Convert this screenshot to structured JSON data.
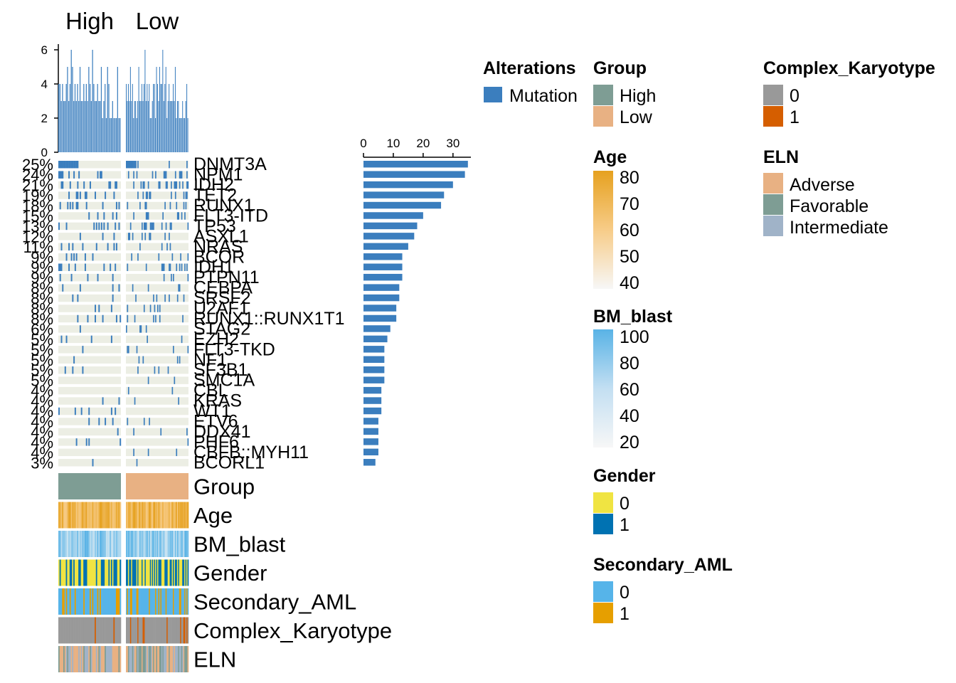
{
  "chart_data": {
    "type": "oncoprint",
    "groups": [
      "High",
      "Low"
    ],
    "top_barplot": {
      "ylim": [
        0,
        6
      ],
      "ticks": [
        0,
        2,
        4,
        6
      ],
      "high_values": [
        4,
        4,
        3,
        4,
        3,
        3,
        4,
        5,
        3,
        4,
        6,
        5,
        3,
        4,
        3,
        4,
        3,
        5,
        3,
        3,
        4,
        3,
        4,
        3,
        5,
        4,
        3,
        6,
        4,
        3,
        3,
        4,
        3,
        3,
        5,
        2,
        3,
        4,
        2,
        5,
        4,
        2,
        2,
        3,
        2,
        2,
        2,
        5,
        2,
        2
      ],
      "low_values": [
        4,
        3,
        4,
        3,
        5,
        3,
        4,
        2,
        3,
        3,
        2,
        3,
        5,
        3,
        3,
        4,
        3,
        4,
        6,
        3,
        4,
        3,
        4,
        2,
        2,
        3,
        4,
        4,
        2,
        5,
        4,
        3,
        5,
        4,
        4,
        6,
        3,
        4,
        5,
        2,
        3,
        4,
        3,
        3,
        3,
        4,
        3,
        5,
        2,
        3,
        3,
        2,
        2,
        2,
        3,
        2,
        2,
        3,
        4,
        2
      ]
    },
    "genes": [
      "DNMT3A",
      "NPM1",
      "IDH2",
      "TET2",
      "RUNX1",
      "FLT3-ITD",
      "TP53",
      "ASXL1",
      "NRAS",
      "BCOR",
      "IDH1",
      "PTPN11",
      "CEBPA",
      "SRSF2",
      "U2AF1",
      "RUNX1::RUNX1T1",
      "STAG2",
      "EZH2",
      "FLT3-TKD",
      "NF1",
      "SF3B1",
      "SMC1A",
      "CBL",
      "KRAS",
      "WT1",
      "ETV6",
      "DDX41",
      "PHF6",
      "CBFB::MYH11",
      "BCORL1"
    ],
    "percentages": [
      "25%",
      "24%",
      "21%",
      "19%",
      "18%",
      "15%",
      "13%",
      "12%",
      "11%",
      "9%",
      "9%",
      "9%",
      "8%",
      "8%",
      "8%",
      "8%",
      "6%",
      "5%",
      "5%",
      "5%",
      "5%",
      "5%",
      "4%",
      "4%",
      "4%",
      "4%",
      "4%",
      "4%",
      "4%",
      "3%"
    ],
    "right_barplot": {
      "ticks": [
        0,
        10,
        20,
        30
      ],
      "xlim": [
        0,
        36
      ],
      "values": [
        35,
        34,
        30,
        27,
        26,
        20,
        18,
        17,
        15,
        13,
        13,
        13,
        12,
        12,
        11,
        11,
        9,
        8,
        7,
        7,
        7,
        7,
        6,
        6,
        6,
        5,
        5,
        5,
        5,
        4
      ]
    },
    "annotations": [
      "Group",
      "Age",
      "BM_blast",
      "Gender",
      "Secondary_AML",
      "Complex_Karyotype",
      "ELN"
    ]
  },
  "legends": {
    "alterations": {
      "title": "Alterations",
      "items": [
        {
          "label": "Mutation",
          "color": "#3b7ebe"
        }
      ]
    },
    "group": {
      "title": "Group",
      "items": [
        {
          "label": "High",
          "color": "#7e9d94"
        },
        {
          "label": "Low",
          "color": "#e8b183"
        }
      ]
    },
    "age": {
      "title": "Age",
      "ticks": [
        "80",
        "70",
        "60",
        "50",
        "40"
      ],
      "color_high": "#e6a11f",
      "color_low": "#f5f5f5"
    },
    "bm_blast": {
      "title": "BM_blast",
      "ticks": [
        "100",
        "80",
        "60",
        "40",
        "20"
      ],
      "color_high": "#59b3e6",
      "color_low": "#f5f5f5"
    },
    "gender": {
      "title": "Gender",
      "items": [
        {
          "label": "0",
          "color": "#f0e442"
        },
        {
          "label": "1",
          "color": "#0072b2"
        }
      ]
    },
    "secondary_aml": {
      "title": "Secondary_AML",
      "items": [
        {
          "label": "0",
          "color": "#56b4e9"
        },
        {
          "label": "1",
          "color": "#e69f00"
        }
      ]
    },
    "complex_karyotype": {
      "title": "Complex_Karyotype",
      "items": [
        {
          "label": "0",
          "color": "#999999"
        },
        {
          "label": "1",
          "color": "#d55e00"
        }
      ]
    },
    "eln": {
      "title": "ELN",
      "items": [
        {
          "label": "Adverse",
          "color": "#e8b183"
        },
        {
          "label": "Favorable",
          "color": "#7e9d94"
        },
        {
          "label": "Intermediate",
          "color": "#a0b3c8"
        }
      ]
    }
  }
}
